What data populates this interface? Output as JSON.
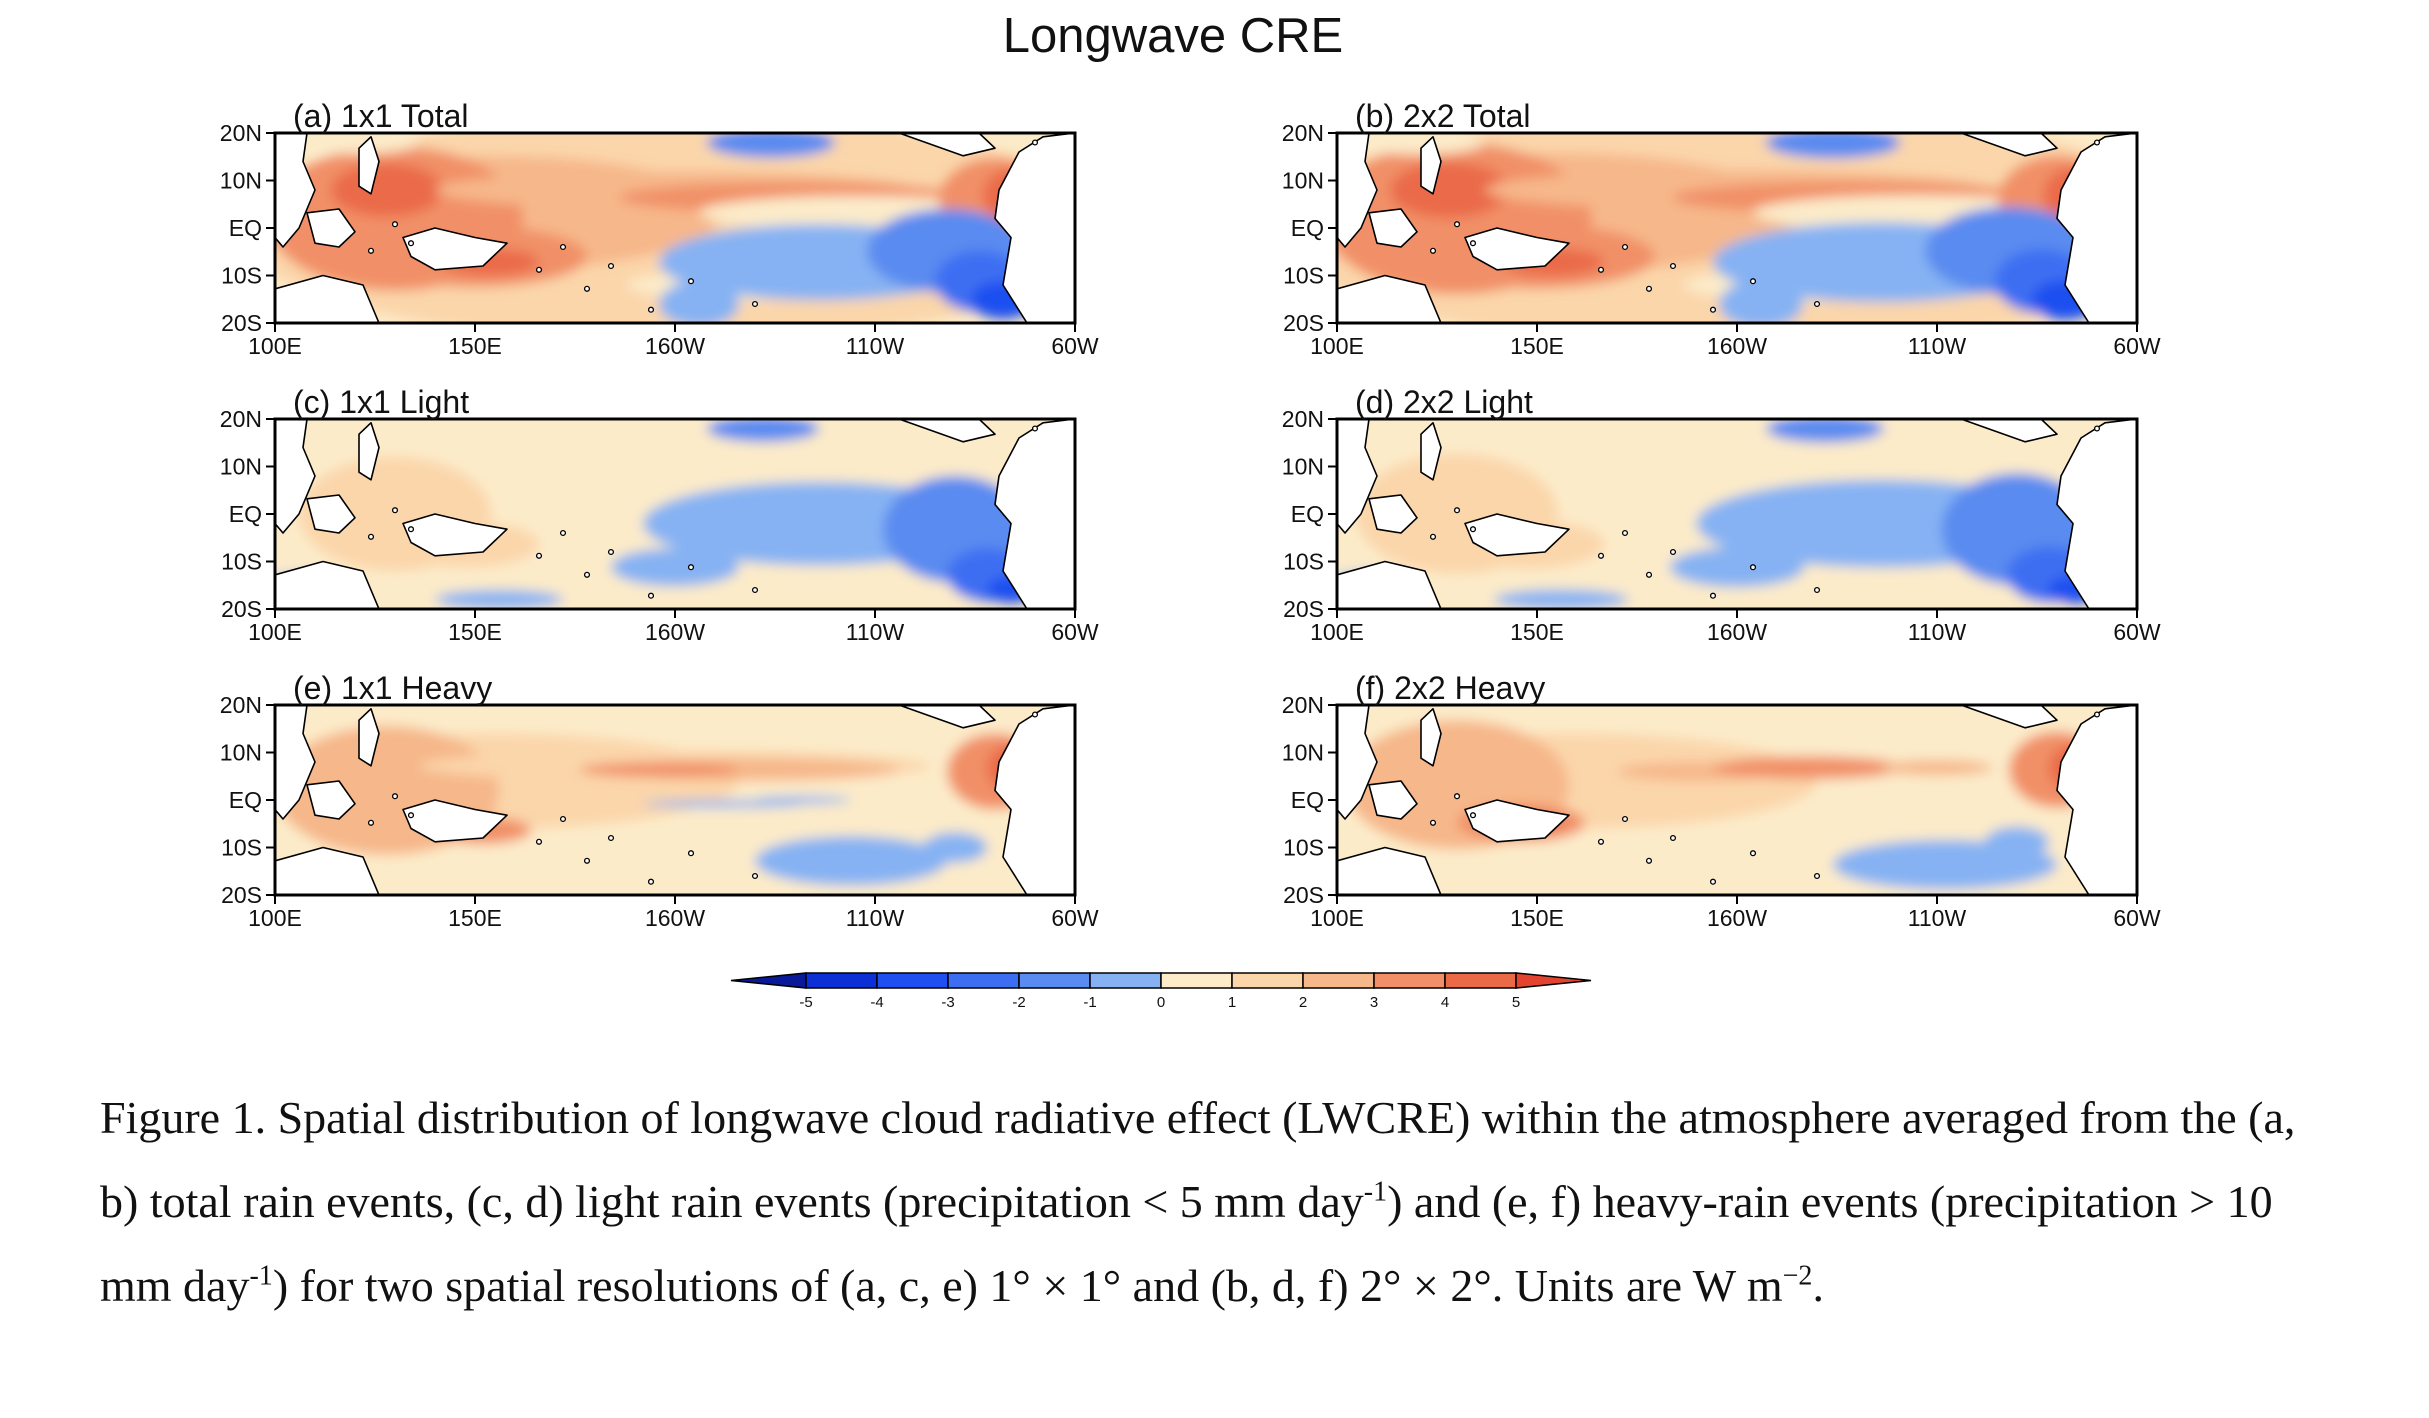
{
  "figure": {
    "title": "Longwave CRE",
    "lat_labels": [
      "20N",
      "10N",
      "EQ",
      "10S",
      "20S"
    ],
    "lon_labels": [
      "100E",
      "150E",
      "160W",
      "110W",
      "60W"
    ],
    "panels": [
      {
        "id": "a",
        "label": "(a) 1x1 Total",
        "rain_type": "total"
      },
      {
        "id": "b",
        "label": "(b) 2x2 Total",
        "rain_type": "total"
      },
      {
        "id": "c",
        "label": "(c) 1x1 Light",
        "rain_type": "light"
      },
      {
        "id": "d",
        "label": "(d) 2x2 Light",
        "rain_type": "light"
      },
      {
        "id": "e",
        "label": "(e) 1x1 Heavy",
        "rain_type": "heavy"
      },
      {
        "id": "f",
        "label": "(f) 2x2 Heavy",
        "rain_type": "heavy"
      }
    ],
    "colorbar": {
      "ticks": [
        "-5",
        "-4",
        "-3",
        "-2",
        "-1",
        "0",
        "1",
        "2",
        "3",
        "4",
        "5"
      ],
      "colors": [
        "#08199a",
        "#0d2fd6",
        "#1f4ff0",
        "#3d6ef2",
        "#5a8bf0",
        "#86b2f3",
        "#fcebc9",
        "#fbd6aa",
        "#f6b78a",
        "#f19068",
        "#ea6a48",
        "#e4442f"
      ]
    }
  },
  "caption": {
    "p1": "Figure 1. Spatial distribution of longwave cloud radiative effect (LWCRE) within the atmosphere averaged from the (a, b) total rain events, (c, d) light rain events (precipitation < 5 mm day",
    "sup1": "-1",
    "p2": ") and (e, f) heavy-rain events (precipitation > 10 mm day",
    "sup2": "-1",
    "p3": ") for two spatial resolutions of (a, c, e) 1° × 1° and (b, d, f) 2° × 2°. Units are W m",
    "sup3": "−2",
    "p4": "."
  }
}
